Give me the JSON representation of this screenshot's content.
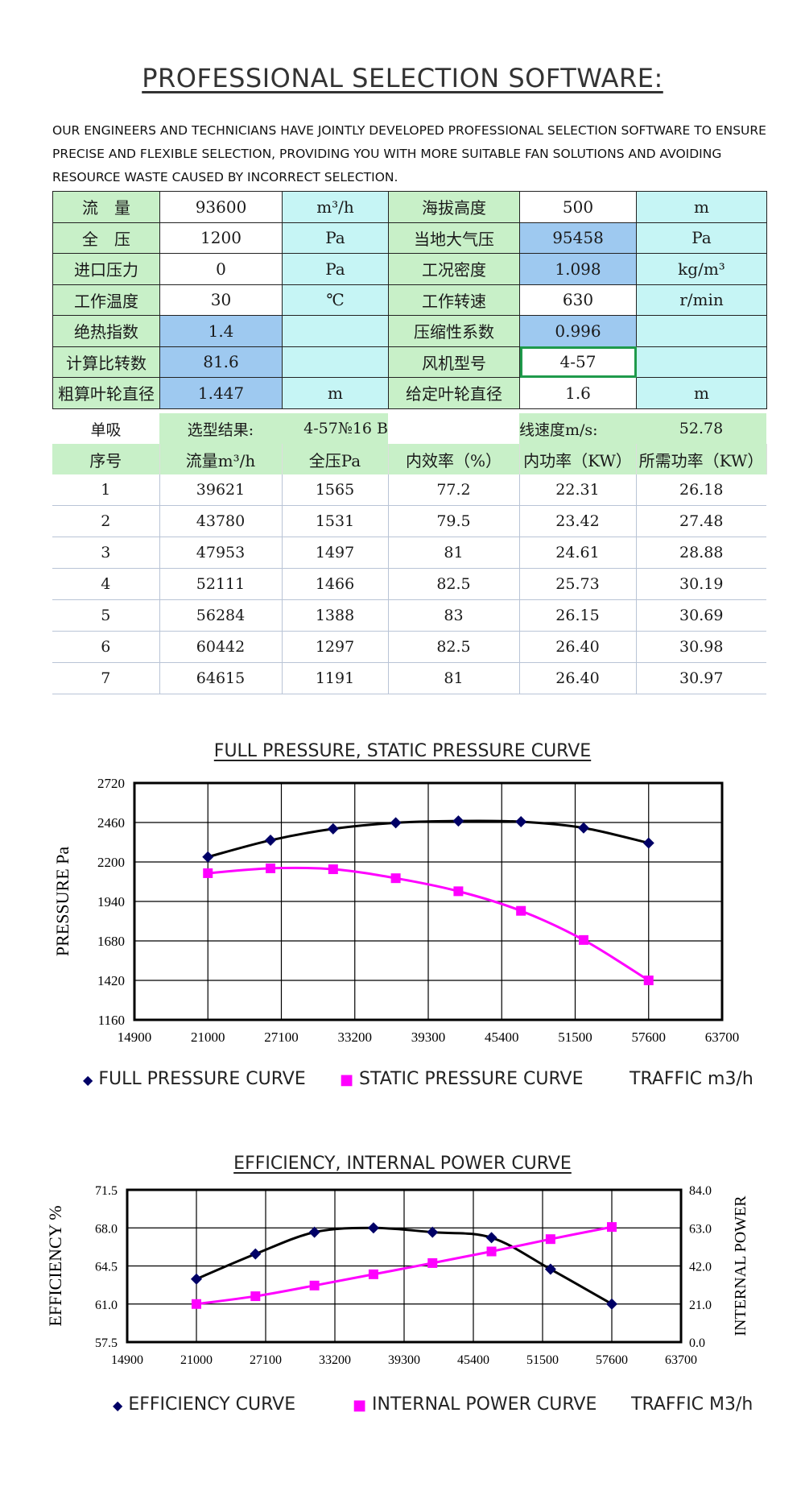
{
  "page": {
    "title": "PROFESSIONAL SELECTION SOFTWARE:",
    "intro": "OUR ENGINEERS AND TECHNICIANS HAVE JOINTLY DEVELOPED PROFESSIONAL SELECTION SOFTWARE TO ENSURE PRECISE AND FLEXIBLE SELECTION, PROVIDING YOU WITH MORE SUITABLE FAN SOLUTIONS AND AVOIDING RESOURCE WASTE CAUSED BY INCORRECT SELECTION."
  },
  "params": {
    "rows": [
      [
        "流　量",
        "93600",
        "m³/h",
        "海拔高度",
        "500",
        "m"
      ],
      [
        "全　压",
        "1200",
        "Pa",
        "当地大气压",
        "95458",
        "Pa"
      ],
      [
        "进口压力",
        "0",
        "Pa",
        "工况密度",
        "1.098",
        "kg/m³"
      ],
      [
        "工作温度",
        "30",
        "℃",
        "工作转速",
        "630",
        "r/min"
      ],
      [
        "绝热指数",
        "1.4",
        "",
        "压缩性系数",
        "0.996",
        ""
      ],
      [
        "计算比转数",
        "81.6",
        "",
        "风机型号",
        "4-57",
        ""
      ],
      [
        "粗算叶轮直径",
        "1.447",
        "m",
        "给定叶轮直径",
        "1.6",
        "m"
      ]
    ]
  },
  "results": {
    "suction": "单吸",
    "result_label": "选型结果:",
    "model": "4-57№16 B",
    "speed_label": "线速度m/s:",
    "speed_value": "52.78",
    "headers": [
      "序号",
      "流量m³/h",
      "全压Pa",
      "内效率（%）",
      "内功率（KW）",
      "所需功率（KW）"
    ],
    "rows": [
      [
        "1",
        "39621",
        "1565",
        "77.2",
        "22.31",
        "26.18"
      ],
      [
        "2",
        "43780",
        "1531",
        "79.5",
        "23.42",
        "27.48"
      ],
      [
        "3",
        "47953",
        "1497",
        "81",
        "24.61",
        "28.88"
      ],
      [
        "4",
        "52111",
        "1466",
        "82.5",
        "25.73",
        "30.19"
      ],
      [
        "5",
        "56284",
        "1388",
        "83",
        "26.15",
        "30.69"
      ],
      [
        "6",
        "60442",
        "1297",
        "82.5",
        "26.40",
        "30.98"
      ],
      [
        "7",
        "64615",
        "1191",
        "81",
        "26.40",
        "30.97"
      ]
    ]
  },
  "chart_data": [
    {
      "type": "line",
      "title": "FULL PRESSURE, STATIC PRESSURE CURVE",
      "ylabel": "PRESSURE Pa",
      "xlabel": "TRAFFIC m3/h",
      "xlim": [
        14900,
        63700
      ],
      "ylim": [
        1160,
        2720
      ],
      "xticks": [
        14900,
        21000,
        27100,
        33200,
        39300,
        45400,
        51500,
        57600,
        63700
      ],
      "yticks": [
        1160,
        1420,
        1680,
        1940,
        2200,
        2460,
        2720
      ],
      "grid": true,
      "legend": "bottom",
      "series": [
        {
          "name": "FULL PRESSURE CURVE",
          "marker": "diamond",
          "color": "#000066",
          "x": [
            21000,
            26200,
            31400,
            36600,
            41800,
            47000,
            52200,
            57600
          ],
          "y": [
            2233,
            2343,
            2418,
            2458,
            2470,
            2465,
            2424,
            2325
          ]
        },
        {
          "name": "STATIC PRESSURE CURVE",
          "marker": "square",
          "color": "#ff00ff",
          "x": [
            21000,
            26200,
            31400,
            36600,
            41800,
            47000,
            52200,
            57600
          ],
          "y": [
            2126,
            2158,
            2152,
            2093,
            2007,
            1878,
            1686,
            1420
          ]
        }
      ]
    },
    {
      "type": "line",
      "title": "EFFICIENCY, INTERNAL POWER CURVE",
      "ylabel": "EFFICIENCY %",
      "y2label": "INTERNAL POWER",
      "xlabel": "TRAFFIC M3/h",
      "xlim": [
        14900,
        63700
      ],
      "ylim": [
        57.5,
        71.5
      ],
      "y2lim": [
        0,
        84
      ],
      "xticks": [
        14900,
        21000,
        27100,
        33200,
        39300,
        45400,
        51500,
        57600,
        63700
      ],
      "yticks": [
        "57.5",
        "61.0",
        "64.5",
        "68.0",
        "71.5"
      ],
      "y2ticks": [
        "0.0",
        "21.0",
        "42.0",
        "63.0",
        "84.0"
      ],
      "grid": true,
      "legend": "bottom",
      "series": [
        {
          "name": "EFFICIENCY CURVE",
          "marker": "diamond",
          "color": "#000066",
          "axis": "left",
          "x": [
            21000,
            26200,
            31400,
            36600,
            41800,
            47000,
            52200,
            57600
          ],
          "y": [
            63.3,
            65.6,
            67.6,
            68.0,
            67.6,
            67.1,
            64.2,
            61.0
          ]
        },
        {
          "name": "INTERNAL POWER CURVE",
          "marker": "square",
          "color": "#ff00ff",
          "axis": "right",
          "x": [
            21000,
            26200,
            31400,
            36600,
            41800,
            47000,
            52200,
            57600
          ],
          "y": [
            21.0,
            25.3,
            31.2,
            37.4,
            43.6,
            50.0,
            56.8,
            63.5
          ]
        }
      ]
    }
  ]
}
